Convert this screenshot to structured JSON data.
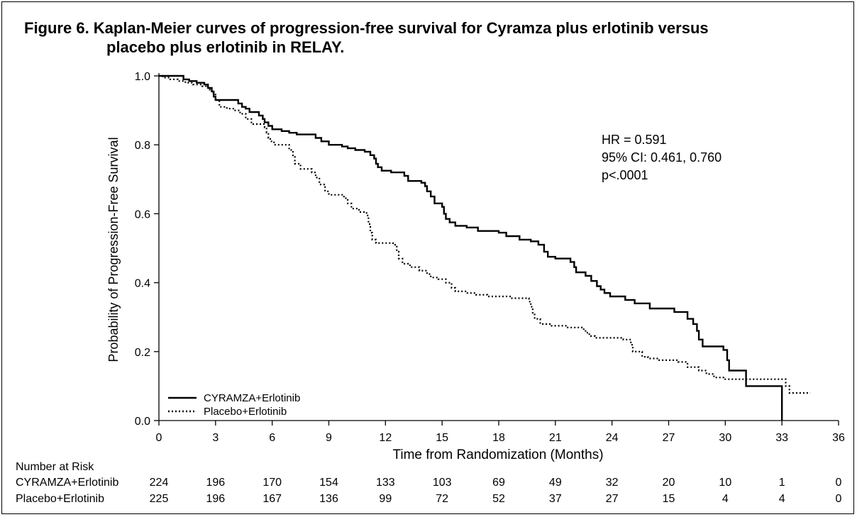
{
  "chart_data": {
    "type": "line",
    "title_line1": "Figure 6. Kaplan-Meier curves of progression-free survival for Cyramza plus erlotinib versus",
    "title_line2": "placebo plus erlotinib in RELAY.",
    "xlabel": "Time from Randomization (Months)",
    "ylabel": "Probability of Progression-Free Survival",
    "xlim": [
      0,
      36
    ],
    "ylim": [
      0,
      1.0
    ],
    "xticks": [
      0,
      3,
      6,
      9,
      12,
      15,
      18,
      21,
      24,
      27,
      30,
      33,
      36
    ],
    "yticks": [
      "0.0",
      "0.2",
      "0.4",
      "0.6",
      "0.8",
      "1.0"
    ],
    "grid": false,
    "legend_position": "bottom-left",
    "annotation": [
      "HR = 0.591",
      "95% CI: 0.461, 0.760",
      "p<.0001"
    ],
    "series": [
      {
        "name": "CYRAMZA+Erlotinib",
        "style": "solid",
        "steps": [
          [
            0,
            1.0
          ],
          [
            1.3,
            0.99
          ],
          [
            1.6,
            0.985
          ],
          [
            2.0,
            0.98
          ],
          [
            2.4,
            0.975
          ],
          [
            2.6,
            0.965
          ],
          [
            2.8,
            0.955
          ],
          [
            2.9,
            0.94
          ],
          [
            3.0,
            0.93
          ],
          [
            4.2,
            0.92
          ],
          [
            4.4,
            0.91
          ],
          [
            4.6,
            0.905
          ],
          [
            4.8,
            0.895
          ],
          [
            5.3,
            0.885
          ],
          [
            5.5,
            0.875
          ],
          [
            5.6,
            0.865
          ],
          [
            5.8,
            0.855
          ],
          [
            6.0,
            0.845
          ],
          [
            6.5,
            0.84
          ],
          [
            6.9,
            0.835
          ],
          [
            7.3,
            0.83
          ],
          [
            8.3,
            0.82
          ],
          [
            8.6,
            0.81
          ],
          [
            9.0,
            0.8
          ],
          [
            9.7,
            0.795
          ],
          [
            10.0,
            0.79
          ],
          [
            10.4,
            0.785
          ],
          [
            10.9,
            0.78
          ],
          [
            11.2,
            0.77
          ],
          [
            11.4,
            0.76
          ],
          [
            11.5,
            0.745
          ],
          [
            11.6,
            0.735
          ],
          [
            11.8,
            0.725
          ],
          [
            12.3,
            0.72
          ],
          [
            13.0,
            0.71
          ],
          [
            13.2,
            0.695
          ],
          [
            13.9,
            0.69
          ],
          [
            14.1,
            0.68
          ],
          [
            14.2,
            0.665
          ],
          [
            14.4,
            0.65
          ],
          [
            14.6,
            0.63
          ],
          [
            15.0,
            0.62
          ],
          [
            15.1,
            0.6
          ],
          [
            15.2,
            0.585
          ],
          [
            15.4,
            0.575
          ],
          [
            15.7,
            0.565
          ],
          [
            16.3,
            0.56
          ],
          [
            16.9,
            0.55
          ],
          [
            18.0,
            0.545
          ],
          [
            18.4,
            0.535
          ],
          [
            19.1,
            0.525
          ],
          [
            19.7,
            0.52
          ],
          [
            20.1,
            0.51
          ],
          [
            20.4,
            0.49
          ],
          [
            20.6,
            0.475
          ],
          [
            21.0,
            0.47
          ],
          [
            21.8,
            0.46
          ],
          [
            22.0,
            0.445
          ],
          [
            22.1,
            0.43
          ],
          [
            22.6,
            0.42
          ],
          [
            22.9,
            0.405
          ],
          [
            23.2,
            0.39
          ],
          [
            23.4,
            0.38
          ],
          [
            23.6,
            0.37
          ],
          [
            23.9,
            0.36
          ],
          [
            24.7,
            0.35
          ],
          [
            25.2,
            0.34
          ],
          [
            26.0,
            0.325
          ],
          [
            27.3,
            0.315
          ],
          [
            28.0,
            0.295
          ],
          [
            28.3,
            0.28
          ],
          [
            28.5,
            0.26
          ],
          [
            28.6,
            0.235
          ],
          [
            28.8,
            0.215
          ],
          [
            29.9,
            0.205
          ],
          [
            30.1,
            0.175
          ],
          [
            30.2,
            0.145
          ],
          [
            31.1,
            0.1
          ],
          [
            33.0,
            0.0
          ]
        ]
      },
      {
        "name": "Placebo+Erlotinib",
        "style": "dotted",
        "steps": [
          [
            0,
            1.0
          ],
          [
            0.2,
            0.995
          ],
          [
            0.6,
            0.99
          ],
          [
            1.0,
            0.985
          ],
          [
            1.4,
            0.98
          ],
          [
            1.8,
            0.975
          ],
          [
            2.3,
            0.97
          ],
          [
            2.6,
            0.96
          ],
          [
            2.8,
            0.95
          ],
          [
            3.0,
            0.93
          ],
          [
            3.2,
            0.91
          ],
          [
            3.6,
            0.905
          ],
          [
            4.0,
            0.9
          ],
          [
            4.3,
            0.89
          ],
          [
            4.6,
            0.875
          ],
          [
            4.9,
            0.86
          ],
          [
            5.6,
            0.85
          ],
          [
            5.7,
            0.835
          ],
          [
            5.8,
            0.82
          ],
          [
            5.9,
            0.81
          ],
          [
            6.1,
            0.8
          ],
          [
            6.9,
            0.785
          ],
          [
            7.1,
            0.765
          ],
          [
            7.2,
            0.745
          ],
          [
            7.5,
            0.73
          ],
          [
            8.1,
            0.72
          ],
          [
            8.3,
            0.705
          ],
          [
            8.5,
            0.685
          ],
          [
            8.8,
            0.665
          ],
          [
            9.0,
            0.655
          ],
          [
            9.8,
            0.645
          ],
          [
            10.0,
            0.63
          ],
          [
            10.2,
            0.615
          ],
          [
            10.6,
            0.605
          ],
          [
            11.0,
            0.595
          ],
          [
            11.1,
            0.57
          ],
          [
            11.2,
            0.545
          ],
          [
            11.3,
            0.525
          ],
          [
            11.5,
            0.515
          ],
          [
            12.4,
            0.51
          ],
          [
            12.6,
            0.49
          ],
          [
            12.7,
            0.47
          ],
          [
            12.9,
            0.455
          ],
          [
            13.3,
            0.445
          ],
          [
            13.8,
            0.435
          ],
          [
            14.2,
            0.425
          ],
          [
            14.4,
            0.415
          ],
          [
            14.8,
            0.41
          ],
          [
            15.2,
            0.4
          ],
          [
            15.5,
            0.385
          ],
          [
            15.7,
            0.375
          ],
          [
            16.3,
            0.37
          ],
          [
            16.8,
            0.365
          ],
          [
            17.4,
            0.36
          ],
          [
            18.6,
            0.355
          ],
          [
            19.6,
            0.345
          ],
          [
            19.7,
            0.33
          ],
          [
            19.8,
            0.31
          ],
          [
            19.9,
            0.295
          ],
          [
            20.2,
            0.28
          ],
          [
            20.8,
            0.275
          ],
          [
            21.6,
            0.27
          ],
          [
            22.4,
            0.265
          ],
          [
            22.6,
            0.255
          ],
          [
            22.8,
            0.245
          ],
          [
            23.1,
            0.24
          ],
          [
            24.6,
            0.235
          ],
          [
            25.0,
            0.22
          ],
          [
            25.1,
            0.2
          ],
          [
            25.6,
            0.185
          ],
          [
            25.9,
            0.18
          ],
          [
            26.5,
            0.175
          ],
          [
            27.5,
            0.17
          ],
          [
            28.0,
            0.155
          ],
          [
            28.6,
            0.145
          ],
          [
            29.0,
            0.135
          ],
          [
            29.4,
            0.125
          ],
          [
            29.9,
            0.12
          ],
          [
            33.2,
            0.1
          ],
          [
            33.4,
            0.08
          ],
          [
            34.5,
            0.08
          ]
        ]
      }
    ]
  },
  "risk_table": {
    "heading": "Number at Risk",
    "rows": [
      {
        "label": "CYRAMZA+Erlotinib",
        "values": [
          "224",
          "196",
          "170",
          "154",
          "133",
          "103",
          "69",
          "49",
          "32",
          "20",
          "10",
          "1",
          "0"
        ]
      },
      {
        "label": "Placebo+Erlotinib",
        "values": [
          "225",
          "196",
          "167",
          "136",
          "99",
          "72",
          "52",
          "37",
          "27",
          "15",
          "4",
          "4",
          "0"
        ]
      }
    ]
  }
}
